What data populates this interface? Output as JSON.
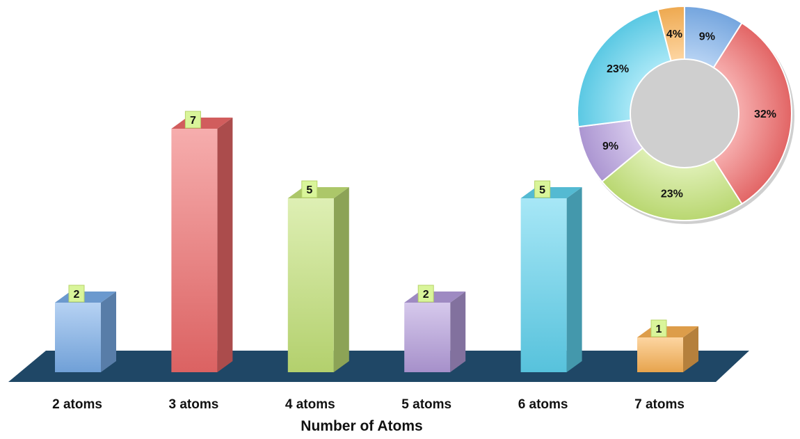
{
  "chart_data": [
    {
      "type": "bar",
      "categories": [
        "2 atoms",
        "3 atoms",
        "4 atoms",
        "5 atoms",
        "6 atoms",
        "7 atoms"
      ],
      "values": [
        2,
        7,
        5,
        2,
        5,
        1
      ],
      "data_labels": [
        "2",
        "7",
        "5",
        "2",
        "5",
        "1"
      ],
      "colors": [
        "#7aaeea",
        "#ee6a6a",
        "#c3e277",
        "#b49ddc",
        "#5fd3ef",
        "#fbb254"
      ],
      "floor_color": "#1f4766",
      "label_box_color": "#d9f59a",
      "xlabel": "Number of Atoms",
      "ylabel": "",
      "ylim": [
        0,
        7
      ],
      "grid": false,
      "legend": "none",
      "three_d": true
    },
    {
      "type": "pie",
      "style": "doughnut",
      "values": [
        9,
        32,
        23,
        9,
        23,
        4
      ],
      "labels": [
        "9%",
        "32%",
        "23%",
        "9%",
        "23%",
        "4%"
      ],
      "colors": [
        "#7aaeea",
        "#ee6a6a",
        "#c3e277",
        "#b49ddc",
        "#5fd3ef",
        "#fbb254"
      ],
      "legend": "none"
    }
  ]
}
